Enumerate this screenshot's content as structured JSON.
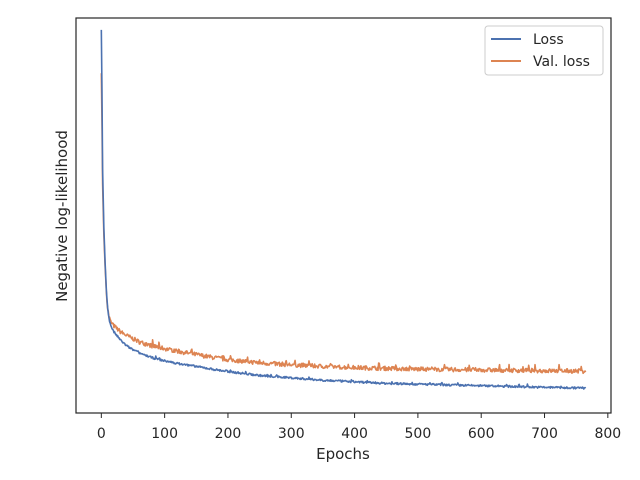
{
  "chart_data": {
    "type": "line",
    "title": "",
    "xlabel": "Epochs",
    "ylabel": "Negative log-likelihood",
    "xlim": [
      -40,
      805
    ],
    "ylim": [
      0,
      100
    ],
    "y_ticks_shown": false,
    "grid": false,
    "legend_position": "top-right",
    "x_ticks": [
      0,
      100,
      200,
      300,
      400,
      500,
      600,
      700,
      800
    ],
    "x_tick_labels": [
      "0",
      "100",
      "200",
      "300",
      "400",
      "500",
      "600",
      "700",
      "800"
    ],
    "series": [
      {
        "name": "Loss",
        "color": "#4c72b0",
        "x": [
          0,
          1,
          2,
          4,
          6,
          8,
          10,
          12,
          15,
          20,
          25,
          30,
          40,
          50,
          60,
          80,
          100,
          125,
          150,
          175,
          200,
          250,
          300,
          350,
          400,
          450,
          500,
          550,
          600,
          650,
          700,
          765
        ],
        "y": [
          97,
          82,
          62,
          47,
          38,
          31,
          26.5,
          24,
          22,
          20.5,
          19.5,
          18.5,
          17,
          16,
          15.2,
          14,
          13.2,
          12.4,
          11.8,
          11.1,
          10.5,
          9.5,
          8.9,
          8.3,
          7.9,
          7.5,
          7.3,
          7.1,
          6.9,
          6.7,
          6.5,
          6.3
        ],
        "noise": 0.25
      },
      {
        "name": "Val. loss",
        "color": "#dd8452",
        "x": [
          0,
          1,
          2,
          4,
          6,
          8,
          10,
          12,
          15,
          20,
          25,
          30,
          40,
          50,
          60,
          80,
          100,
          125,
          150,
          175,
          200,
          250,
          300,
          350,
          400,
          450,
          500,
          550,
          600,
          650,
          700,
          765
        ],
        "y": [
          86,
          74,
          58,
          45,
          37,
          30.5,
          26.5,
          24.5,
          23,
          22,
          21.3,
          20.6,
          19.6,
          18.8,
          18,
          17,
          16.3,
          15.5,
          14.8,
          14.1,
          13.5,
          12.7,
          12.2,
          11.8,
          11.5,
          11.3,
          11.1,
          11,
          10.9,
          10.8,
          10.7,
          10.6
        ],
        "noise": 0.55
      }
    ]
  }
}
